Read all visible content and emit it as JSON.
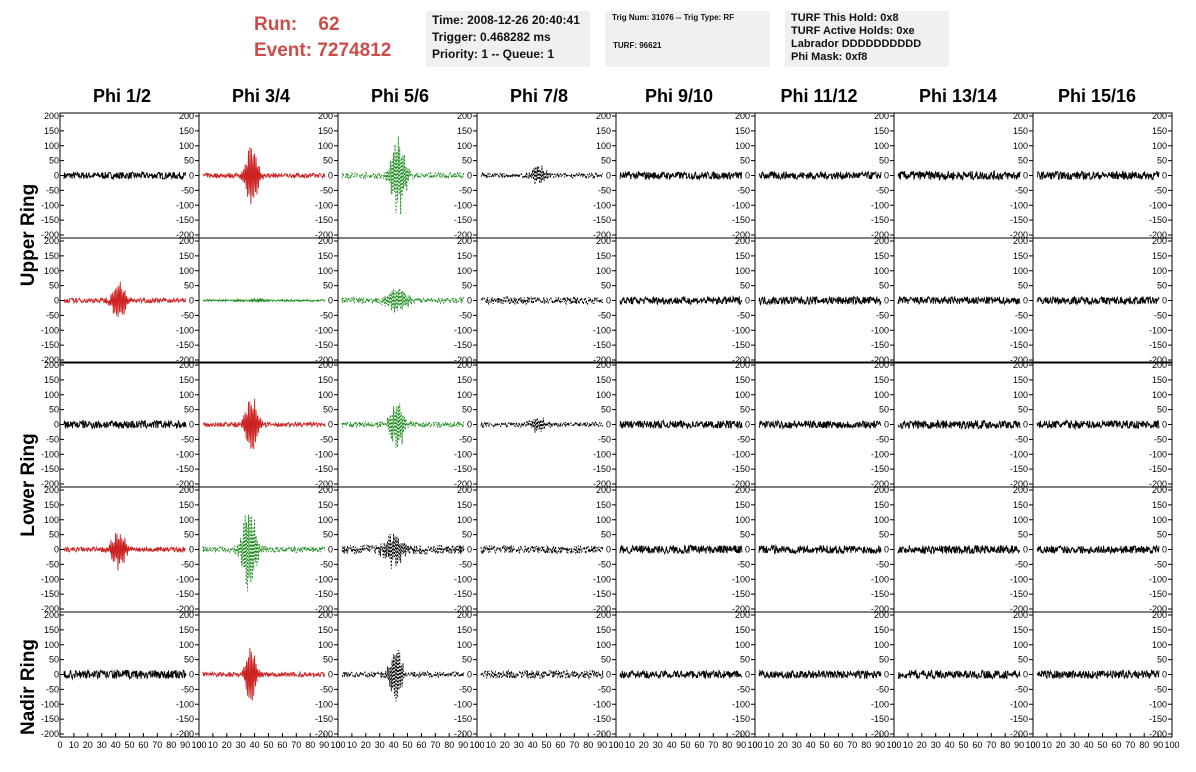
{
  "header": {
    "run_label": "Run:",
    "run_value": "62",
    "event_label": "Event:",
    "event_value": "7274812",
    "time": "Time: 2008-12-26 20:40:41",
    "trigger": "Trigger: 0.468282 ms",
    "priority": "Priority: 1 -- Queue: 1",
    "trig_num": "Trig Num: 31076 -- Trig Type: RF",
    "turf": "TURF: 96621",
    "turf_this_hold": "TURF This Hold: 0x8",
    "turf_active_holds": "TURF Active Holds: 0xe",
    "labrador": "Labrador DDDDDDDDDD",
    "phi_mask": "Phi Mask: 0xf8"
  },
  "columns": [
    "Phi 1/2",
    "Phi 3/4",
    "Phi 5/6",
    "Phi 7/8",
    "Phi 9/10",
    "Phi 11/12",
    "Phi 13/14",
    "Phi 15/16"
  ],
  "ring_labels": [
    "Upper Ring",
    "Lower Ring",
    "Nadir Ring"
  ],
  "colors": {
    "black": "#000000",
    "red": "#cc2222",
    "green": "#1a8a1a"
  },
  "chart_data": {
    "type": "line",
    "description_rows": 5,
    "ylim": [
      -200,
      200
    ],
    "xlim": [
      0,
      100
    ],
    "yticks": [
      -200,
      -150,
      -100,
      -50,
      0,
      50,
      100,
      150,
      200
    ],
    "xticks": [
      0,
      10,
      20,
      30,
      40,
      50,
      60,
      70,
      80,
      90,
      100
    ],
    "xtick_labels": [
      "0",
      "10",
      "20",
      "30",
      "40",
      "50",
      "60",
      "70",
      "80",
      "90",
      "100"
    ],
    "grid": false,
    "panels": [
      [
        {
          "color": "black",
          "noise": 12,
          "pulse": 0,
          "center": 0,
          "width": 0,
          "dash": false
        },
        {
          "color": "red",
          "noise": 8,
          "pulse": 120,
          "center": 40,
          "width": 8,
          "dash": false
        },
        {
          "color": "green",
          "noise": 10,
          "pulse": 150,
          "center": 46,
          "width": 9,
          "dash": true
        },
        {
          "color": "black",
          "noise": 8,
          "pulse": 40,
          "center": 47,
          "width": 10,
          "dash": true
        },
        {
          "color": "black",
          "noise": 13,
          "pulse": 0,
          "center": 0,
          "width": 0,
          "dash": false
        },
        {
          "color": "black",
          "noise": 13,
          "pulse": 0,
          "center": 0,
          "width": 0,
          "dash": false
        },
        {
          "color": "black",
          "noise": 15,
          "pulse": 0,
          "center": 0,
          "width": 0,
          "dash": false
        },
        {
          "color": "black",
          "noise": 14,
          "pulse": 0,
          "center": 0,
          "width": 0,
          "dash": false
        }
      ],
      [
        {
          "color": "red",
          "noise": 8,
          "pulse": 75,
          "center": 45,
          "width": 9,
          "dash": false
        },
        {
          "color": "green",
          "noise": 3,
          "pulse": 6,
          "center": 45,
          "width": 10,
          "dash": false
        },
        {
          "color": "green",
          "noise": 10,
          "pulse": 50,
          "center": 45,
          "width": 14,
          "dash": true
        },
        {
          "color": "black",
          "noise": 12,
          "pulse": 0,
          "center": 0,
          "width": 0,
          "dash": true
        },
        {
          "color": "black",
          "noise": 13,
          "pulse": 0,
          "center": 0,
          "width": 0,
          "dash": false
        },
        {
          "color": "black",
          "noise": 14,
          "pulse": 0,
          "center": 0,
          "width": 0,
          "dash": false
        },
        {
          "color": "black",
          "noise": 13,
          "pulse": 0,
          "center": 0,
          "width": 0,
          "dash": false
        },
        {
          "color": "black",
          "noise": 13,
          "pulse": 0,
          "center": 0,
          "width": 0,
          "dash": false
        }
      ],
      [
        {
          "color": "black",
          "noise": 14,
          "pulse": 0,
          "center": 0,
          "width": 0,
          "dash": false
        },
        {
          "color": "red",
          "noise": 8,
          "pulse": 115,
          "center": 40,
          "width": 8,
          "dash": false
        },
        {
          "color": "green",
          "noise": 10,
          "pulse": 95,
          "center": 45,
          "width": 9,
          "dash": true
        },
        {
          "color": "black",
          "noise": 8,
          "pulse": 30,
          "center": 47,
          "width": 10,
          "dash": true
        },
        {
          "color": "black",
          "noise": 13,
          "pulse": 0,
          "center": 0,
          "width": 0,
          "dash": false
        },
        {
          "color": "black",
          "noise": 13,
          "pulse": 0,
          "center": 0,
          "width": 0,
          "dash": false
        },
        {
          "color": "black",
          "noise": 14,
          "pulse": 0,
          "center": 0,
          "width": 0,
          "dash": false
        },
        {
          "color": "black",
          "noise": 14,
          "pulse": 0,
          "center": 0,
          "width": 0,
          "dash": false
        }
      ],
      [
        {
          "color": "red",
          "noise": 8,
          "pulse": 75,
          "center": 45,
          "width": 9,
          "dash": false
        },
        {
          "color": "green",
          "noise": 10,
          "pulse": 175,
          "center": 38,
          "width": 9,
          "dash": true
        },
        {
          "color": "black",
          "noise": 15,
          "pulse": 60,
          "center": 42,
          "width": 12,
          "dash": true
        },
        {
          "color": "black",
          "noise": 14,
          "pulse": 0,
          "center": 0,
          "width": 0,
          "dash": true
        },
        {
          "color": "black",
          "noise": 14,
          "pulse": 0,
          "center": 0,
          "width": 0,
          "dash": false
        },
        {
          "color": "black",
          "noise": 14,
          "pulse": 0,
          "center": 0,
          "width": 0,
          "dash": false
        },
        {
          "color": "black",
          "noise": 14,
          "pulse": 0,
          "center": 0,
          "width": 0,
          "dash": false
        },
        {
          "color": "black",
          "noise": 13,
          "pulse": 0,
          "center": 0,
          "width": 0,
          "dash": false
        }
      ],
      [
        {
          "color": "black",
          "noise": 15,
          "pulse": 0,
          "center": 0,
          "width": 0,
          "dash": false
        },
        {
          "color": "red",
          "noise": 8,
          "pulse": 110,
          "center": 39,
          "width": 7,
          "dash": false
        },
        {
          "color": "black",
          "noise": 10,
          "pulse": 110,
          "center": 44,
          "width": 8,
          "dash": true
        },
        {
          "color": "black",
          "noise": 14,
          "pulse": 0,
          "center": 0,
          "width": 0,
          "dash": true
        },
        {
          "color": "black",
          "noise": 13,
          "pulse": 0,
          "center": 0,
          "width": 0,
          "dash": false
        },
        {
          "color": "black",
          "noise": 13,
          "pulse": 0,
          "center": 0,
          "width": 0,
          "dash": false
        },
        {
          "color": "black",
          "noise": 14,
          "pulse": 0,
          "center": 0,
          "width": 0,
          "dash": false
        },
        {
          "color": "black",
          "noise": 14,
          "pulse": 0,
          "center": 0,
          "width": 0,
          "dash": false
        }
      ]
    ]
  }
}
